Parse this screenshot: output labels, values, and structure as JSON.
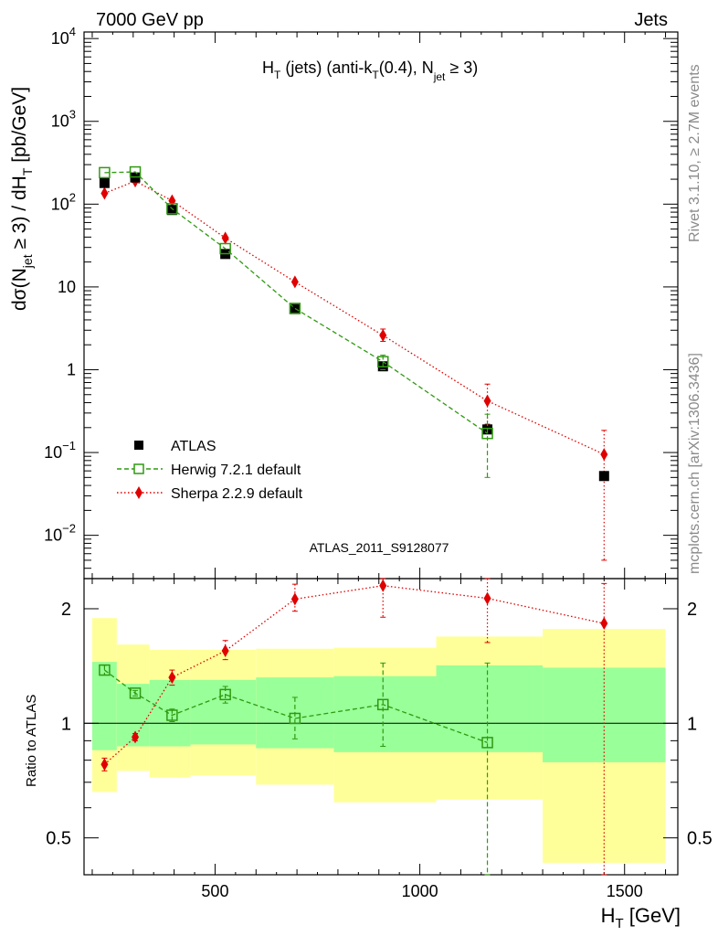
{
  "header": {
    "left": "7000 GeV pp",
    "right": "Jets",
    "title_main": "H",
    "title_sub1": "T",
    "title_mid": " (jets) (anti-k",
    "title_sub2": "T",
    "title_mid2": "(0.4), N",
    "title_sub3": "jet",
    "title_tail": " ≥ 3)"
  },
  "side_labels": {
    "rivet": "Rivet 3.1.10, ≥ 2.7M events",
    "mcplots": "mcplots.cern.ch [arXiv:1306.3436]"
  },
  "analysis_id": "ATLAS_2011_S9128077",
  "axes": {
    "ylabel_upper_parts": [
      "dσ(N",
      "jet",
      " ≥ 3) / dH",
      "T",
      " [pb/GeV]"
    ],
    "ylabel_lower": "Ratio to ATLAS",
    "xlabel_main": "H",
    "xlabel_sub": "T",
    "xlabel_tail": " [GeV]",
    "xticks": [
      "500",
      "1000",
      "1500"
    ],
    "yticks_upper": [
      {
        "base": "10",
        "exp": "4",
        "v": 10000
      },
      {
        "base": "10",
        "exp": "3",
        "v": 1000
      },
      {
        "base": "10",
        "exp": "2",
        "v": 100
      },
      {
        "base": "10",
        "exp": "",
        "v": 10
      },
      {
        "base": "1",
        "exp": "",
        "v": 1
      },
      {
        "base": "10",
        "exp": "−1",
        "v": 0.1
      },
      {
        "base": "10",
        "exp": "−2",
        "v": 0.01
      }
    ],
    "yticks_lower": [
      "2",
      "1",
      "0.5"
    ]
  },
  "legend": {
    "atlas": "ATLAS",
    "herwig": "Herwig 7.2.1 default",
    "sherpa": "Sherpa 2.2.9 default"
  },
  "chart_data": {
    "type": "scatter",
    "xlim": [
      180,
      1630
    ],
    "ylim_upper": [
      0.003,
      12000
    ],
    "ylim_lower": [
      0.4,
      2.4
    ],
    "y_scale": "log",
    "bins": [
      [
        200,
        260
      ],
      [
        260,
        340
      ],
      [
        340,
        440
      ],
      [
        440,
        600
      ],
      [
        600,
        790
      ],
      [
        790,
        1040
      ],
      [
        1040,
        1300
      ],
      [
        1300,
        1600
      ]
    ],
    "x": [
      230,
      305,
      395,
      525,
      695,
      910,
      1165,
      1450
    ],
    "series": [
      {
        "name": "ATLAS",
        "color": "#000000",
        "marker": "square",
        "values": [
          180,
          210,
          85,
          25,
          5.4,
          1.1,
          0.19,
          0.052
        ]
      },
      {
        "name": "Herwig 7.2.1 default",
        "color": "#2f9a10",
        "marker": "open-square",
        "line": "dashed",
        "values": [
          240,
          245,
          88,
          29,
          5.5,
          1.25,
          0.17,
          null
        ],
        "errors": [
          [
            0,
            0
          ],
          [
            0,
            0
          ],
          [
            0,
            0
          ],
          [
            0,
            0
          ],
          [
            0,
            0
          ],
          [
            0.25,
            0.25
          ],
          [
            0.12,
            0.12
          ],
          [
            0,
            0
          ]
        ]
      },
      {
        "name": "Sherpa 2.2.9 default",
        "color": "#e00000",
        "marker": "diamond",
        "line": "dotted",
        "values": [
          135,
          190,
          110,
          39,
          11.5,
          2.6,
          0.42,
          0.095
        ],
        "errors": [
          [
            0,
            0
          ],
          [
            0,
            0
          ],
          [
            0,
            0
          ],
          [
            0,
            0
          ],
          [
            0,
            0
          ],
          [
            0.4,
            0.5
          ],
          [
            0.2,
            0.25
          ],
          [
            0.09,
            0.09
          ]
        ]
      }
    ],
    "ratio_herwig": [
      1.38,
      1.2,
      1.05,
      1.19,
      1.03,
      1.12,
      0.89,
      null
    ],
    "ratio_herwig_err": [
      [
        0.04,
        0.04
      ],
      [
        0.02,
        0.02
      ],
      [
        0.04,
        0.04
      ],
      [
        0.06,
        0.06
      ],
      [
        0.12,
        0.14
      ],
      [
        0.25,
        0.32
      ],
      [
        0.5,
        0.55
      ],
      [
        0,
        0
      ]
    ],
    "ratio_sherpa": [
      0.78,
      0.92,
      1.32,
      1.55,
      2.12,
      2.3,
      2.13,
      1.83
    ],
    "ratio_sherpa_err": [
      [
        0.03,
        0.03
      ],
      [
        0.02,
        0.02
      ],
      [
        0.06,
        0.06
      ],
      [
        0.08,
        0.1
      ],
      [
        0.15,
        0.2
      ],
      [
        0.4,
        0.3
      ],
      [
        0.5,
        0.4
      ],
      [
        1.5,
        0.5
      ]
    ],
    "band_green": [
      [
        0.85,
        1.45
      ],
      [
        0.87,
        1.27
      ],
      [
        0.87,
        1.3
      ],
      [
        0.88,
        1.3
      ],
      [
        0.86,
        1.32
      ],
      [
        0.84,
        1.33
      ],
      [
        0.84,
        1.42
      ],
      [
        0.79,
        1.4
      ]
    ],
    "band_yellow": [
      [
        0.66,
        1.89
      ],
      [
        0.75,
        1.61
      ],
      [
        0.72,
        1.56
      ],
      [
        0.73,
        1.56
      ],
      [
        0.69,
        1.57
      ],
      [
        0.62,
        1.58
      ],
      [
        0.63,
        1.69
      ],
      [
        0.43,
        1.77
      ]
    ],
    "colors": {
      "green_band": "#99ff99",
      "yellow_band": "#ffff99"
    }
  }
}
